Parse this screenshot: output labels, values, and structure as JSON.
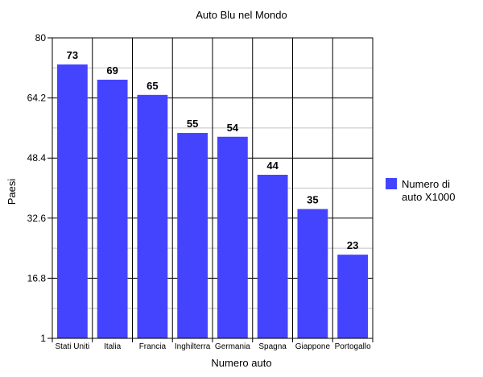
{
  "chart_data": {
    "type": "bar",
    "title": "Auto Blu nel Mondo",
    "xlabel": "Numero auto",
    "ylabel": "Paesi",
    "categories": [
      "Stati Uniti",
      "Italia",
      "Francia",
      "Inghilterra",
      "Germania",
      "Spagna",
      "Giappone",
      "Portogallo"
    ],
    "series": [
      {
        "name": "Numero di auto X1000",
        "values": [
          73,
          69,
          65,
          55,
          54,
          44,
          35,
          23
        ],
        "color": "#4444ff"
      }
    ],
    "data_labels": [
      "73",
      "69",
      "65",
      "55",
      "54",
      "44",
      "35",
      "23"
    ],
    "ylim": [
      1,
      80
    ],
    "yticks": [
      1,
      16.8,
      32.6,
      48.4,
      64.2,
      80
    ],
    "ytick_labels": [
      "1",
      "16.8",
      "32.6",
      "48.4",
      "64.2",
      "80"
    ],
    "legend": {
      "placement": "right",
      "lines": [
        "Numero di",
        "auto X1000"
      ]
    },
    "grid": true,
    "grid_colors": {
      "major": "#000000",
      "minor": "#c0c0c0"
    },
    "bar_color": "#4444ff"
  }
}
